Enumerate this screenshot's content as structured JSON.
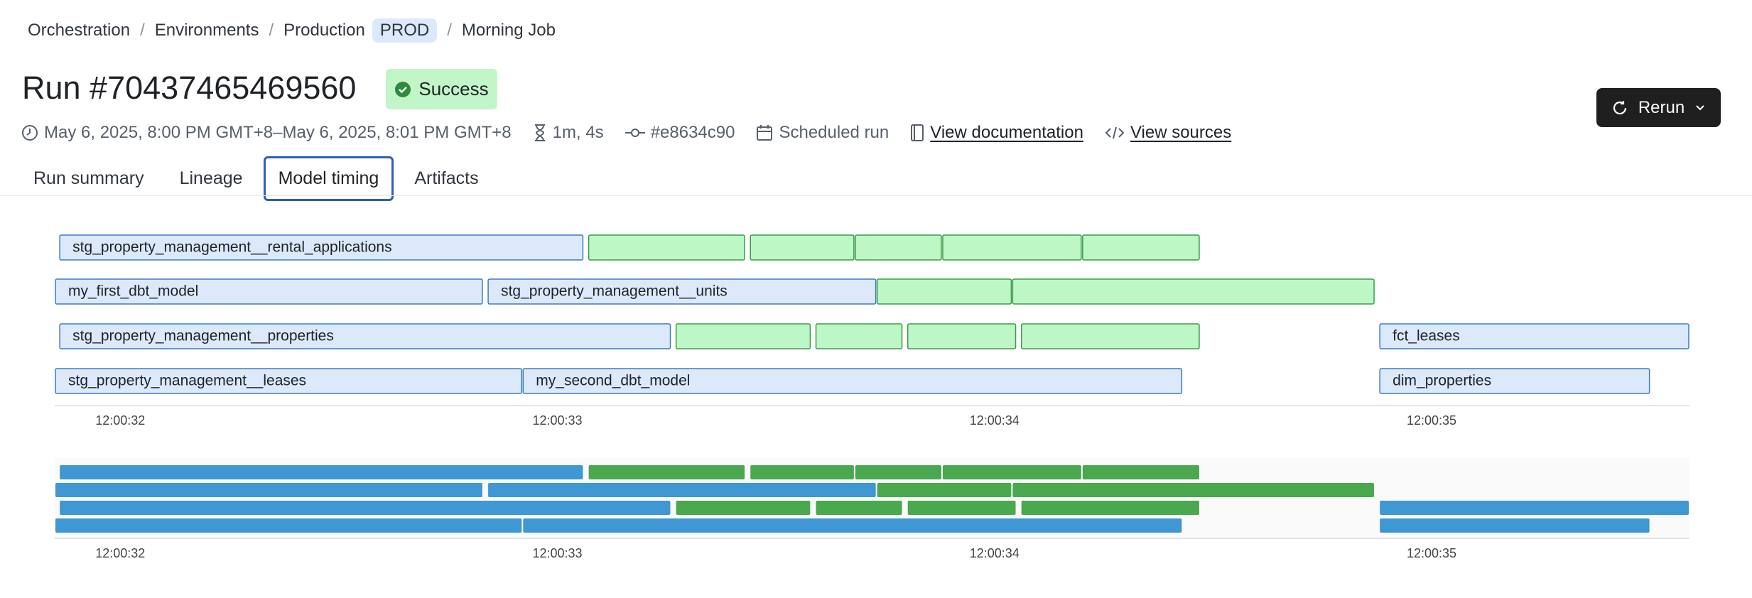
{
  "breadcrumb": {
    "items": [
      "Orchestration",
      "Environments",
      "Production",
      "Morning Job"
    ],
    "separator": "/",
    "env_badge": "PROD"
  },
  "header": {
    "title": "Run #70437465469560",
    "status": "Success",
    "time_range": "May 6, 2025, 8:00 PM GMT+8–May 6, 2025, 8:01 PM GMT+8",
    "duration": "1m, 4s",
    "commit": "#e8634c90",
    "trigger": "Scheduled run",
    "links": [
      "View documentation",
      "View sources"
    ],
    "rerun": "Rerun"
  },
  "tabs": {
    "items": [
      "Run summary",
      "Lineage",
      "Model timing",
      "Artifacts"
    ],
    "active": 2
  },
  "timeline": {
    "xlim": [
      31.85,
      35.59
    ],
    "xticks": [
      {
        "value": 32,
        "label": "12:00:32"
      },
      {
        "value": 33,
        "label": "12:00:33"
      },
      {
        "value": 34,
        "label": "12:00:34"
      },
      {
        "value": 35,
        "label": "12:00:35"
      }
    ],
    "rows": [
      [
        {
          "start": 31.86,
          "end": 33.06,
          "label": "stg_property_management__rental_applications",
          "color": "#dbe9fb"
        },
        {
          "start": 33.07,
          "end": 33.43,
          "color": "#bdf7c6"
        },
        {
          "start": 33.44,
          "end": 33.68,
          "color": "#bdf7c6"
        },
        {
          "start": 33.68,
          "end": 33.88,
          "color": "#bdf7c6"
        },
        {
          "start": 33.88,
          "end": 34.2,
          "color": "#bdf7c6"
        },
        {
          "start": 34.2,
          "end": 34.47,
          "color": "#bdf7c6"
        }
      ],
      [
        {
          "start": 31.85,
          "end": 32.83,
          "label": "my_first_dbt_model",
          "color": "#dbe9fb"
        },
        {
          "start": 32.84,
          "end": 33.73,
          "label": "stg_property_management__units",
          "color": "#dbe9fb"
        },
        {
          "start": 33.73,
          "end": 34.04,
          "color": "#bdf7c6"
        },
        {
          "start": 34.04,
          "end": 34.87,
          "color": "#bdf7c6"
        }
      ],
      [
        {
          "start": 31.86,
          "end": 33.26,
          "label": "stg_property_management__properties",
          "color": "#dbe9fb"
        },
        {
          "start": 33.27,
          "end": 33.58,
          "color": "#bdf7c6"
        },
        {
          "start": 33.59,
          "end": 33.79,
          "color": "#bdf7c6"
        },
        {
          "start": 33.8,
          "end": 34.05,
          "color": "#bdf7c6"
        },
        {
          "start": 34.06,
          "end": 34.47,
          "color": "#bdf7c6"
        },
        {
          "start": 34.88,
          "end": 35.59,
          "label": "fct_leases",
          "color": "#dbe9fb"
        }
      ],
      [
        {
          "start": 31.85,
          "end": 32.92,
          "label": "stg_property_management__leases",
          "color": "#dbe9fb"
        },
        {
          "start": 32.92,
          "end": 34.43,
          "label": "my_second_dbt_model",
          "color": "#dbe9fb"
        },
        {
          "start": 34.88,
          "end": 35.5,
          "label": "dim_properties",
          "color": "#dbe9fb"
        }
      ]
    ]
  }
}
